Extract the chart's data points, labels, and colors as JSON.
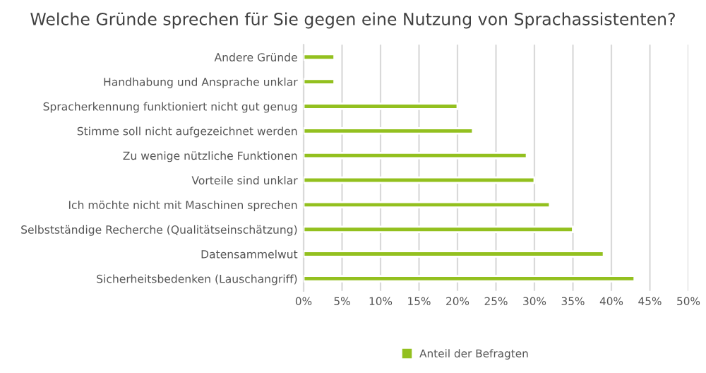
{
  "chart_data": {
    "type": "bar",
    "orientation": "horizontal",
    "title": "Welche Gründe sprechen für Sie gegen eine Nutzung von Sprachassistenten?",
    "categories": [
      "Andere Gründe",
      "Handhabung und Ansprache unklar",
      "Spracherkennung funktioniert nicht gut genug",
      "Stimme soll nicht aufgezeichnet werden",
      "Zu wenige nützliche Funktionen",
      "Vorteile sind unklar",
      "Ich möchte nicht mit Maschinen sprechen",
      "Selbstständige Recherche (Qualitätseinschätzung)",
      "Datensammelwut",
      "Sicherheitsbedenken (Lauschangriff)"
    ],
    "series": [
      {
        "name": "Anteil der Befragten",
        "color": "#93c01f",
        "values": [
          4,
          4,
          20,
          22,
          29,
          30,
          32,
          35,
          39,
          43
        ]
      }
    ],
    "xlim": [
      0,
      50
    ],
    "xticks": [
      {
        "value": 0,
        "label": "0%"
      },
      {
        "value": 5,
        "label": "5%"
      },
      {
        "value": 10,
        "label": "10%"
      },
      {
        "value": 15,
        "label": "15%"
      },
      {
        "value": 20,
        "label": "20%"
      },
      {
        "value": 25,
        "label": "25%"
      },
      {
        "value": 30,
        "label": "30%"
      },
      {
        "value": 35,
        "label": "35%"
      },
      {
        "value": 40,
        "label": "40%"
      },
      {
        "value": 45,
        "label": "45%"
      },
      {
        "value": 50,
        "label": "50%"
      }
    ],
    "grid": "x",
    "legend": "bottom"
  }
}
